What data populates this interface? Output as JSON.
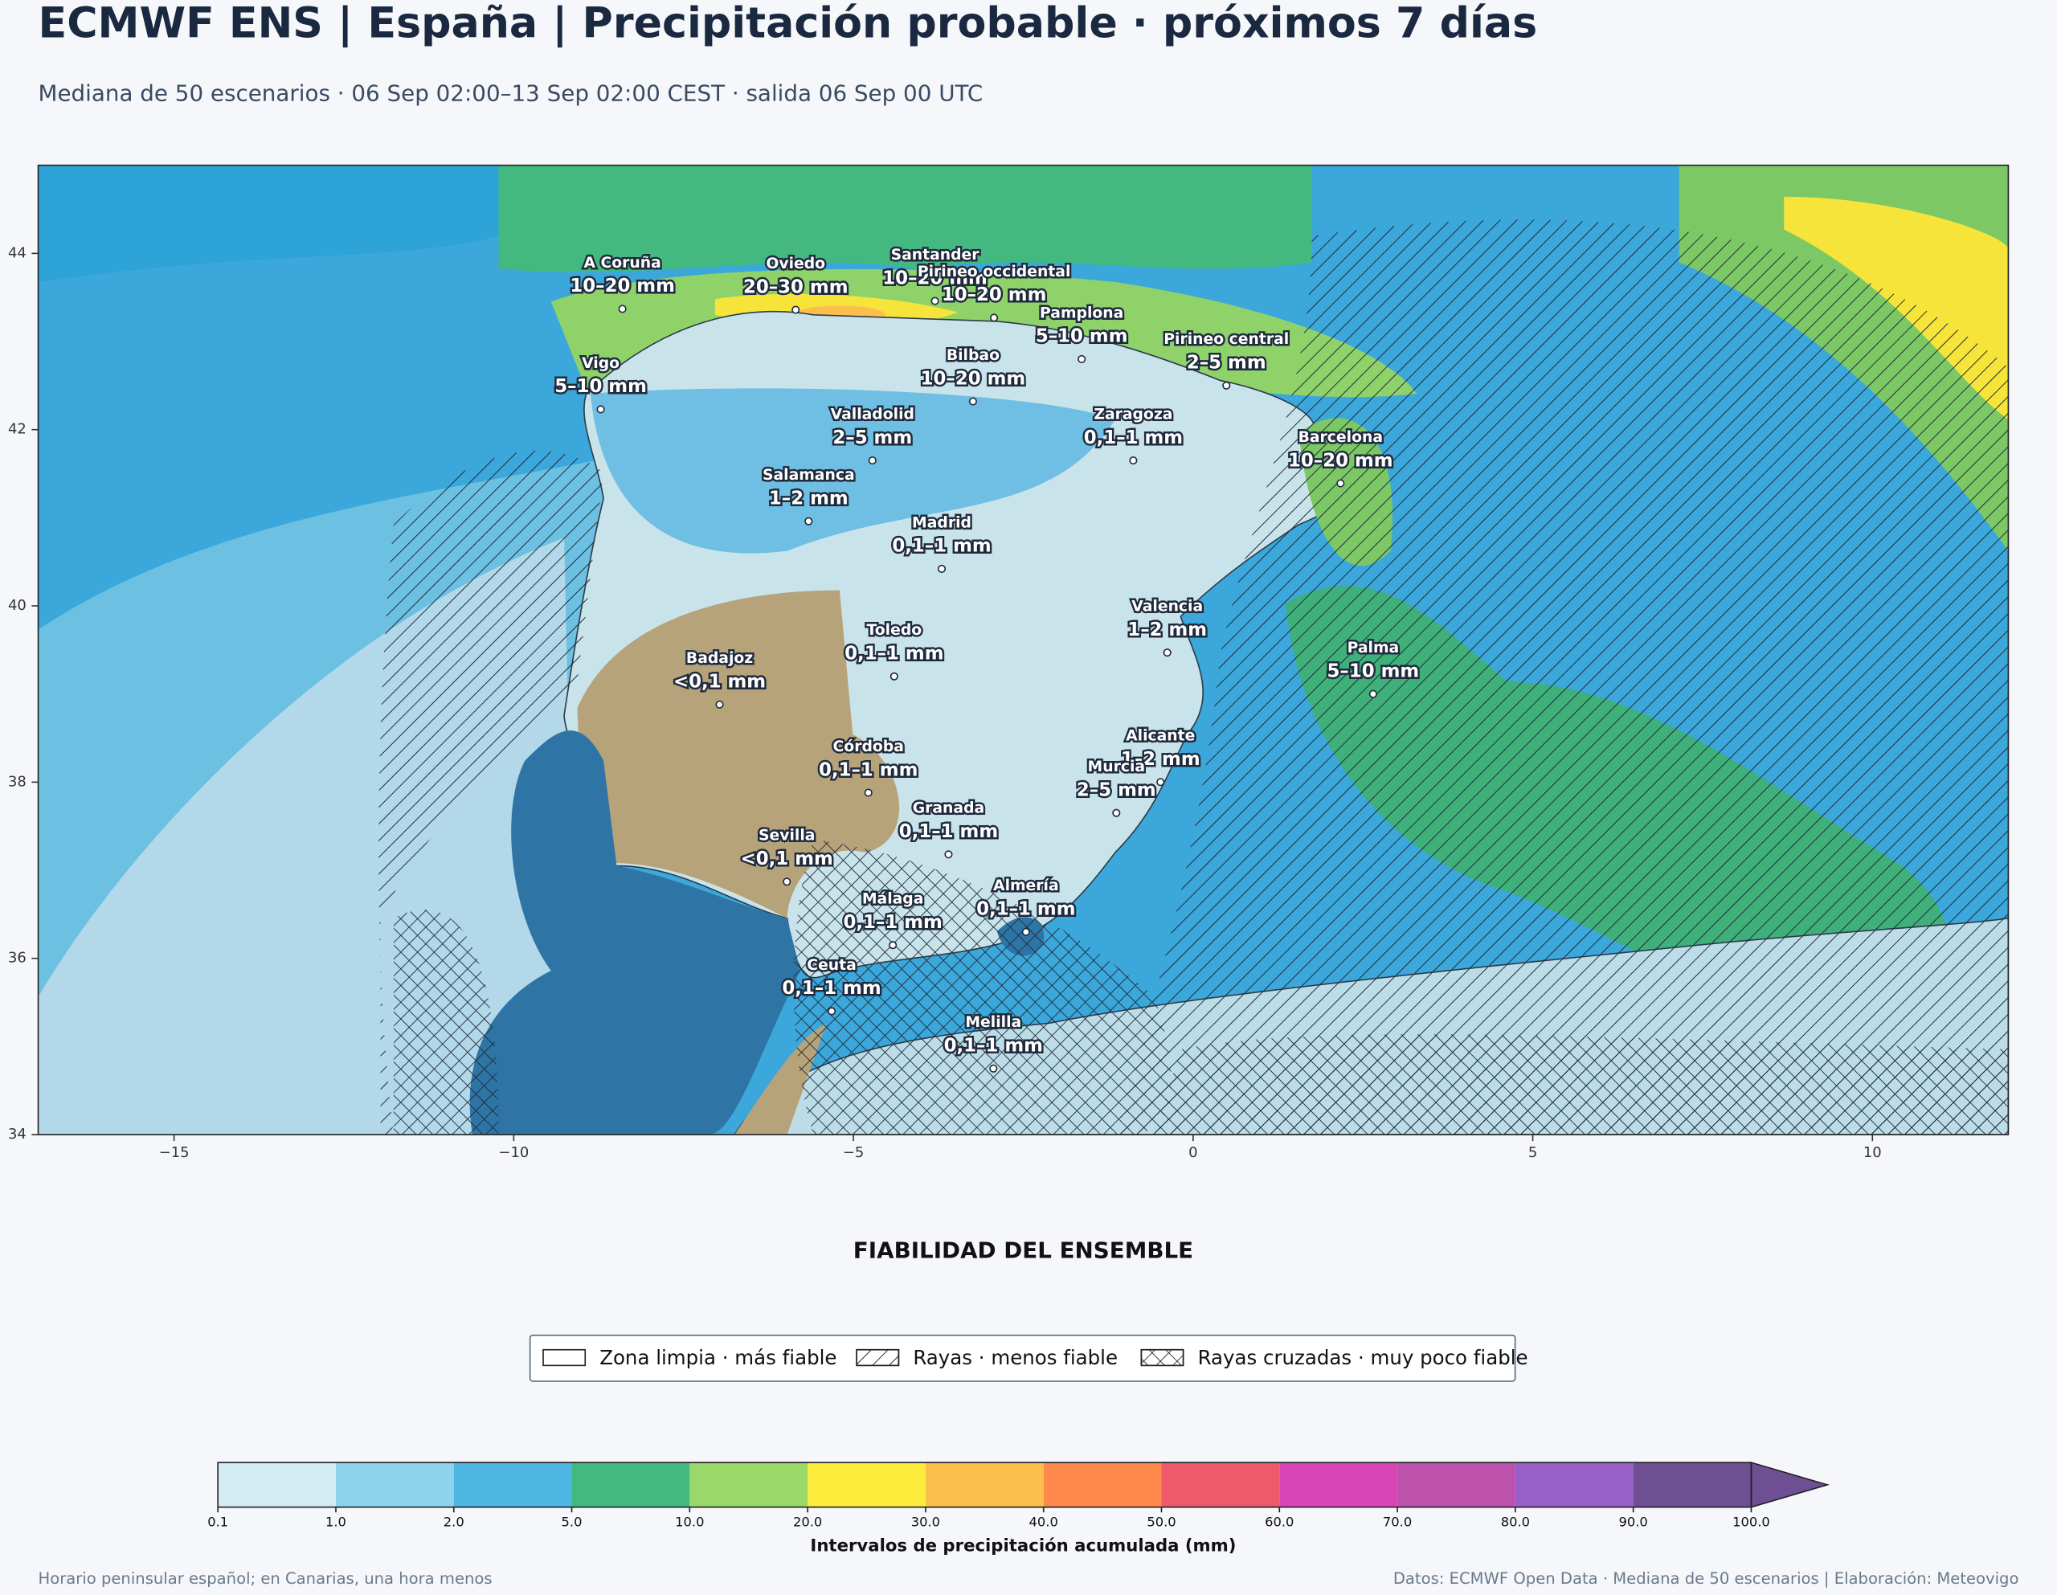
{
  "title": "ECMWF ENS | España | Precipitación probable · próximos 7 días",
  "subtitle": "Mediana de 50 escenarios · 06 Sep 02:00–13 Sep 02:00 CEST · salida 06 Sep 00 UTC",
  "map": {
    "xlim": [
      -17,
      12
    ],
    "ylim": [
      34,
      45
    ],
    "xticks": [
      {
        "value": -15,
        "label": "−15"
      },
      {
        "value": -10,
        "label": "−10"
      },
      {
        "value": -5,
        "label": "−5"
      },
      0,
      5,
      10
    ],
    "yticks": [
      34,
      36,
      38,
      40,
      42,
      44
    ],
    "cities": [
      {
        "name": "A Coruña",
        "value": "10–20 mm",
        "lon": -8.4,
        "lat": 43.37
      },
      {
        "name": "Oviedo",
        "value": "20–30 mm",
        "lon": -5.85,
        "lat": 43.36
      },
      {
        "name": "Santander",
        "value": "10–20 mm",
        "lon": -3.8,
        "lat": 43.46
      },
      {
        "name": "Pirineo occidental",
        "value": "10–20 mm",
        "lon": -2.93,
        "lat": 43.27
      },
      {
        "name": "Pamplona",
        "value": "5–10 mm",
        "lon": -1.64,
        "lat": 42.8
      },
      {
        "name": "Pirineo central",
        "value": "2–5 mm",
        "lon": 0.49,
        "lat": 42.5
      },
      {
        "name": "Bilbao",
        "value": "10–20 mm",
        "lon": -3.24,
        "lat": 42.32
      },
      {
        "name": "Vigo",
        "value": "5–10 mm",
        "lon": -8.72,
        "lat": 42.23
      },
      {
        "name": "Valladolid",
        "value": "2–5 mm",
        "lon": -4.72,
        "lat": 41.65
      },
      {
        "name": "Zaragoza",
        "value": "0,1–1 mm",
        "lon": -0.88,
        "lat": 41.65
      },
      {
        "name": "Barcelona",
        "value": "10–20 mm",
        "lon": 2.17,
        "lat": 41.39
      },
      {
        "name": "Salamanca",
        "value": "1–2 mm",
        "lon": -5.66,
        "lat": 40.96
      },
      {
        "name": "Madrid",
        "value": "0,1–1 mm",
        "lon": -3.7,
        "lat": 40.42
      },
      {
        "name": "Valencia",
        "value": "1–2 mm",
        "lon": -0.38,
        "lat": 39.47
      },
      {
        "name": "Toledo",
        "value": "0,1–1 mm",
        "lon": -4.4,
        "lat": 39.2
      },
      {
        "name": "Badajoz",
        "value": "<0,1 mm",
        "lon": -6.97,
        "lat": 38.88
      },
      {
        "name": "Palma",
        "value": "5–10 mm",
        "lon": 2.65,
        "lat": 39.0
      },
      {
        "name": "Córdoba",
        "value": "0,1–1 mm",
        "lon": -4.78,
        "lat": 37.88
      },
      {
        "name": "Alicante",
        "value": "1–2 mm",
        "lon": -0.48,
        "lat": 38.0
      },
      {
        "name": "Murcia",
        "value": "2–5 mm",
        "lon": -1.13,
        "lat": 37.65
      },
      {
        "name": "Granada",
        "value": "0,1–1 mm",
        "lon": -3.6,
        "lat": 37.18
      },
      {
        "name": "Sevilla",
        "value": "<0,1 mm",
        "lon": -5.98,
        "lat": 36.87
      },
      {
        "name": "Almería",
        "value": "0,1–1 mm",
        "lon": -2.46,
        "lat": 36.3
      },
      {
        "name": "Málaga",
        "value": "0,1–1 mm",
        "lon": -4.42,
        "lat": 36.15
      },
      {
        "name": "Ceuta",
        "value": "0,1–1 mm",
        "lon": -5.32,
        "lat": 35.4
      },
      {
        "name": "Melilla",
        "value": "0,1–1 mm",
        "lon": -2.94,
        "lat": 34.75
      }
    ]
  },
  "legend": {
    "title": "FIABILIDAD DEL ENSEMBLE",
    "entries": [
      {
        "label": "Zona limpia · más fiable",
        "hatch": "none"
      },
      {
        "label": "Rayas · menos fiable",
        "hatch": "stripes"
      },
      {
        "label": "Rayas cruzadas · muy poco fiable",
        "hatch": "cross"
      }
    ]
  },
  "colorbar": {
    "label": "Intervalos de precipitación acumulada (mm)",
    "ticks": [
      0.1,
      {
        "value": 1,
        "label": "1.0"
      },
      {
        "value": 2,
        "label": "2.0"
      },
      {
        "value": 5,
        "label": "5.0"
      },
      {
        "value": 10,
        "label": "10.0"
      },
      {
        "value": 20,
        "label": "20.0"
      },
      {
        "value": 30,
        "label": "30.0"
      },
      {
        "value": 40,
        "label": "40.0"
      },
      {
        "value": 50,
        "label": "50.0"
      },
      {
        "value": 60,
        "label": "60.0"
      },
      {
        "value": 70,
        "label": "70.0"
      },
      {
        "value": 80,
        "label": "80.0"
      },
      {
        "value": 90,
        "label": "90.0"
      },
      {
        "value": 100,
        "label": "100.0"
      }
    ],
    "colors": [
      "#d3ecf4",
      "#8dd3ee",
      "#4db6e3",
      "#44b97f",
      "#9ad86a",
      "#fdec3b",
      "#fdbf4b",
      "#fd8a4a",
      "#ef5a6a",
      "#d845b5",
      "#bd52ad",
      "#9760c8",
      "#6e4f94"
    ]
  },
  "footer": {
    "left": "Horario peninsular español; en Canarias, una hora menos",
    "right": "Datos: ECMWF Open Data · Mediana de 50 escenarios | Elaboración: Meteovigo"
  }
}
